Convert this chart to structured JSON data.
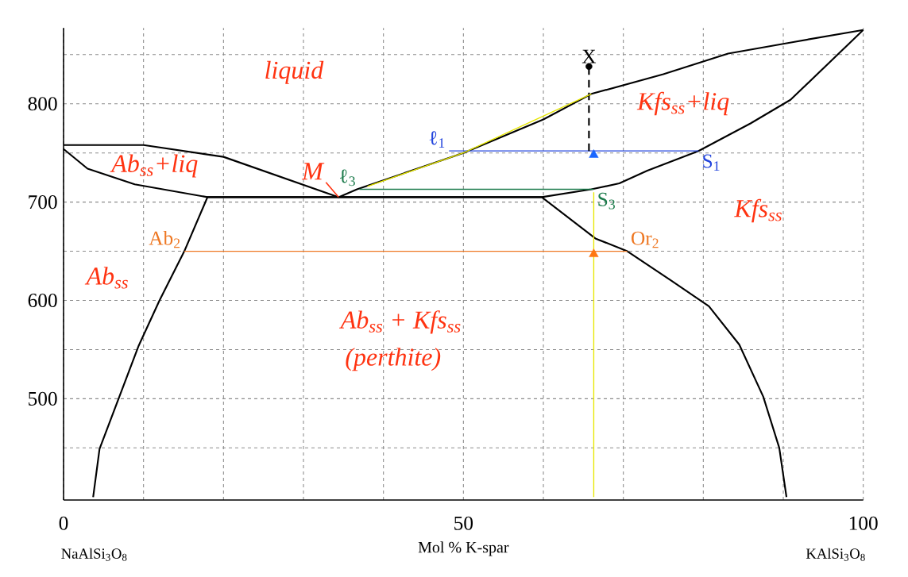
{
  "chart_data": {
    "type": "line",
    "xlabel": "Mol % K-spar",
    "xlim": [
      0,
      100
    ],
    "ylim": [
      397,
      877
    ],
    "xticks": [
      0,
      {
        "value": 10,
        "label": null
      },
      {
        "value": 20,
        "label": null
      },
      {
        "value": 30,
        "label": null
      },
      {
        "value": 40,
        "label": null
      },
      50,
      {
        "value": 60,
        "label": null
      },
      {
        "value": 70,
        "label": null
      },
      {
        "value": 80,
        "label": null
      },
      {
        "value": 90,
        "label": null
      },
      100
    ],
    "yticks": [
      {
        "value": 450,
        "label": null
      },
      500,
      {
        "value": 550,
        "label": null
      },
      600,
      {
        "value": 650,
        "label": null
      },
      700,
      {
        "value": 750,
        "label": null
      },
      800,
      {
        "value": 850,
        "label": null
      }
    ],
    "grid": true,
    "series": [
      {
        "color": "#000000",
        "x": [
          0,
          10,
          20,
          34.4,
          36.7,
          50,
          60,
          66,
          75,
          83.1,
          91.4,
          100
        ],
        "values": [
          758,
          758,
          746,
          705,
          713,
          750,
          784,
          810,
          830,
          851,
          863,
          875
        ]
      },
      {
        "color": "#000000",
        "x": [
          0,
          3,
          8.9,
          18,
          59.8,
          66.5,
          70.5,
          76,
          80.7,
          84.5,
          87.5,
          89.5,
          90.4
        ],
        "values": [
          754,
          734,
          718,
          705,
          705,
          663,
          650,
          620,
          594,
          555,
          502,
          450,
          400
        ]
      },
      {
        "color": "#000000",
        "x": [
          3.7,
          4.5,
          9.4,
          12,
          15.1,
          18,
          59.8,
          66,
          69.5,
          73,
          79.4,
          85.9,
          90.9,
          100
        ],
        "values": [
          400,
          449,
          554,
          600,
          650,
          705,
          705,
          713,
          719,
          732,
          752,
          780,
          804,
          875
        ]
      },
      {
        "color": "#2244dd",
        "x": [
          48.2,
          79.4
        ],
        "values": [
          752,
          752
        ]
      },
      {
        "color": "#1a7a4a",
        "x": [
          37,
          66.3
        ],
        "values": [
          713,
          713
        ]
      },
      {
        "color": "#ee7722",
        "x": [
          15.1,
          70.5
        ],
        "values": [
          650,
          650
        ]
      },
      {
        "color": "#000000",
        "line_style": "dashed",
        "x": [
          65.7,
          65.7
        ],
        "values": [
          752,
          838
        ]
      },
      {
        "color": "#e6e600",
        "x": [
          66,
          50,
          38
        ],
        "values": [
          810,
          750,
          716
        ]
      },
      {
        "color": "#e6e600",
        "x": [
          66.3,
          66.3
        ],
        "values": [
          710,
          400
        ]
      },
      {
        "type": "scatter",
        "marker": "circle",
        "color": "#000000",
        "x": [
          65.7
        ],
        "values": [
          838
        ]
      },
      {
        "type": "scatter",
        "marker": "triangle",
        "color": "#1a66ff",
        "x": [
          66.3
        ],
        "values": [
          748
        ]
      },
      {
        "type": "scatter",
        "marker": "triangle",
        "color": "#ff7711",
        "x": [
          66.3
        ],
        "values": [
          647
        ]
      }
    ],
    "annotations": [
      "NaAlSi$_{3}$O$_{8}$",
      "KAlSi$_{3}$O$_{8}$",
      "liquid",
      "Kfs$_{ss}$+liq",
      "Ab$_{ss}$+liq",
      {
        "text": "M",
        "x": 34.4,
        "y": 705
      },
      "Kfs$_{ss}$",
      "Ab$_{ss}$",
      "Ab$_{ss}$ + Kfs$_{ss}$",
      "(perthite)",
      {
        "text": "ℓ$_{1}$",
        "x": 48.2,
        "y": 752
      },
      {
        "text": "S$_{1}$",
        "x": 79.4,
        "y": 752
      },
      {
        "text": "ℓ$_{3}$",
        "x": 37,
        "y": 713
      },
      {
        "text": "S$_{3}$",
        "x": 66.3,
        "y": 713
      },
      {
        "text": "Ab$_{2}$",
        "x": 15.1,
        "y": 650
      },
      {
        "text": "Or$_{2}$",
        "x": 70.5,
        "y": 650
      },
      {
        "text": "X",
        "x": 65.7,
        "y": 838
      }
    ]
  }
}
